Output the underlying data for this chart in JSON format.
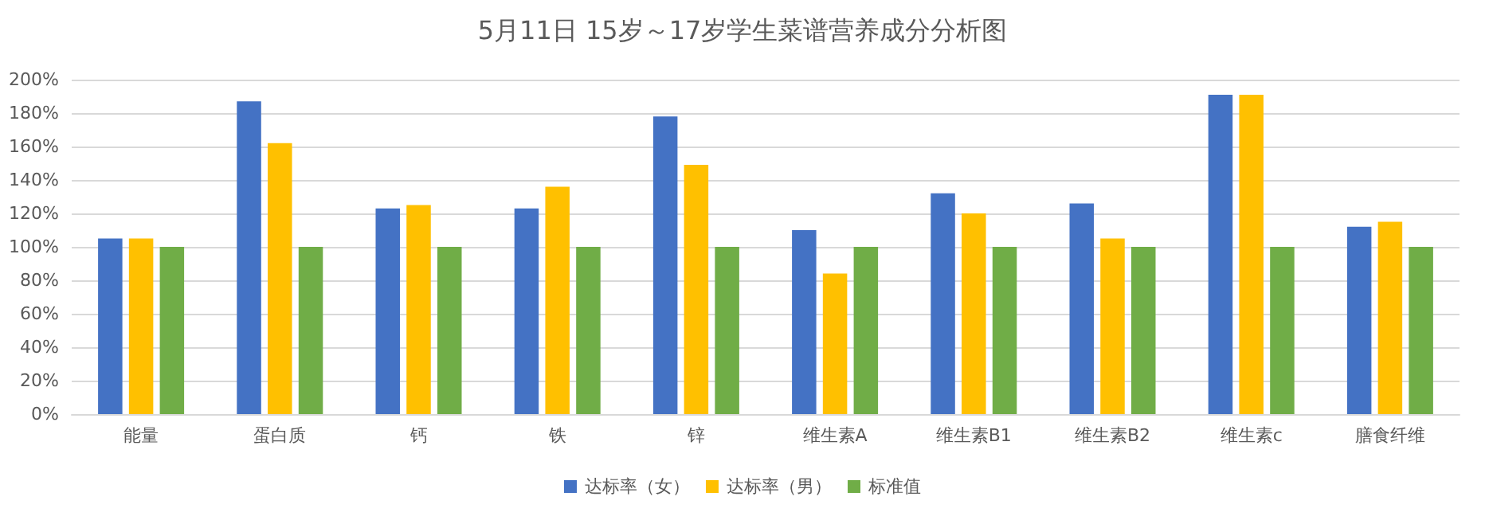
{
  "chart_data": {
    "type": "bar",
    "title": "5月11日 15岁～17岁学生菜谱营养成分分析图",
    "categories": [
      "能量",
      "蛋白质",
      "钙",
      "铁",
      "锌",
      "维生素A",
      "维生素B1",
      "维生素B2",
      "维生素c",
      "膳食纤维"
    ],
    "series": [
      {
        "name": "达标率（女）",
        "color": "#4472c4",
        "values": [
          105,
          187,
          123,
          123,
          178,
          110,
          132,
          126,
          191,
          112
        ]
      },
      {
        "name": "达标率（男）",
        "color": "#ffc000",
        "values": [
          105,
          162,
          125,
          136,
          149,
          84,
          120,
          105,
          191,
          115
        ]
      },
      {
        "name": "标准值",
        "color": "#70ad47",
        "values": [
          100,
          100,
          100,
          100,
          100,
          100,
          100,
          100,
          100,
          100
        ]
      }
    ],
    "ylim": [
      0,
      200
    ],
    "yticks": [
      {
        "value": 0,
        "label": "0%"
      },
      {
        "value": 20,
        "label": "20%"
      },
      {
        "value": 40,
        "label": "40%"
      },
      {
        "value": 60,
        "label": "60%"
      },
      {
        "value": 80,
        "label": "80%"
      },
      {
        "value": 100,
        "label": "100%"
      },
      {
        "value": 120,
        "label": "120%"
      },
      {
        "value": 140,
        "label": "140%"
      },
      {
        "value": 160,
        "label": "160%"
      },
      {
        "value": 180,
        "label": "180%"
      },
      {
        "value": 200,
        "label": "200%"
      }
    ],
    "grid": "y",
    "legend": "bottom"
  }
}
